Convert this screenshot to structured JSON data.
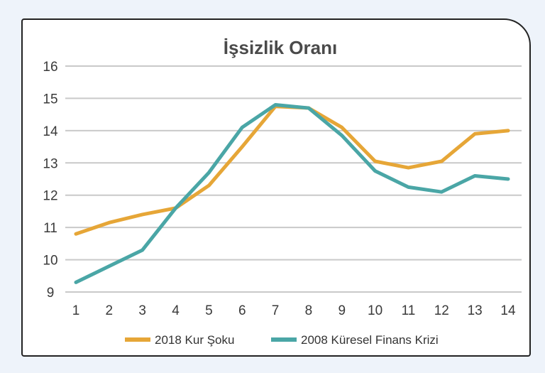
{
  "chart_data": {
    "type": "line",
    "title": "İşsizlik Oranı",
    "xlabel": "",
    "ylabel": "",
    "x": [
      1,
      2,
      3,
      4,
      5,
      6,
      7,
      8,
      9,
      10,
      11,
      12,
      13,
      14
    ],
    "ylim": [
      9,
      16
    ],
    "yticks": [
      9,
      10,
      11,
      12,
      13,
      14,
      15,
      16
    ],
    "grid": "horizontal",
    "legend_position": "bottom",
    "series": [
      {
        "name": "2018 Kur Şoku",
        "color": "#e6a637",
        "values": [
          10.8,
          11.15,
          11.4,
          11.6,
          12.3,
          13.5,
          14.75,
          14.7,
          14.1,
          13.05,
          12.85,
          13.05,
          13.9,
          14.0
        ]
      },
      {
        "name": "2008 Küresel Finans Krizi",
        "color": "#4aa6a6",
        "values": [
          9.3,
          9.8,
          10.3,
          11.6,
          12.7,
          14.1,
          14.8,
          14.7,
          13.85,
          12.75,
          12.25,
          12.1,
          12.6,
          12.5
        ]
      }
    ]
  }
}
